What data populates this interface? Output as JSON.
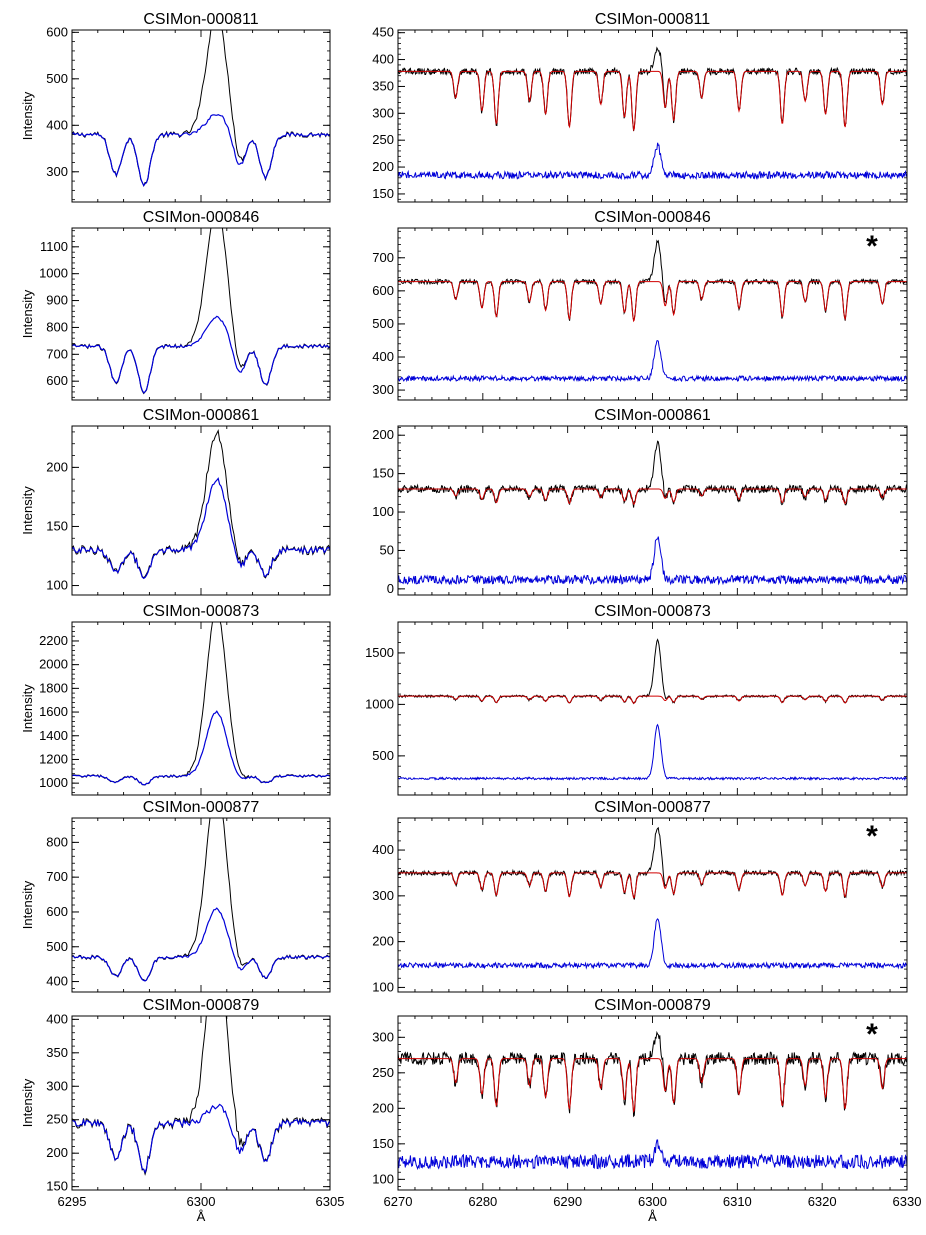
{
  "figure": {
    "xlabel": "Å",
    "ylabel": "Intensity",
    "series_colors": {
      "observed": "#000000",
      "model": "#d00000",
      "residual": "#0000d8"
    }
  },
  "chart_data": [
    {
      "type": "line",
      "title": "CSIMon-000811",
      "panel": "zoom",
      "xlim": [
        6295,
        6305
      ],
      "ylim": [
        235,
        605
      ],
      "yticks": [
        300,
        400,
        500,
        600
      ],
      "xticks": [
        6295,
        6300,
        6305
      ],
      "base": 380,
      "model_base": null,
      "res_base": null,
      "peak_amp": 260,
      "model_amp": 45,
      "feature_depth": 110,
      "res_peak": null,
      "noise": 6,
      "star": false
    },
    {
      "type": "line",
      "title": "CSIMon-000811",
      "panel": "wide",
      "xlim": [
        6270,
        6330
      ],
      "ylim": [
        135,
        455
      ],
      "yticks": [
        150,
        200,
        250,
        300,
        350,
        400,
        450
      ],
      "xticks": [
        6270,
        6280,
        6290,
        6300,
        6310,
        6320,
        6330
      ],
      "base": 380,
      "model_base": 378,
      "res_base": 185,
      "peak_amp": 45,
      "model_amp": 0,
      "feature_depth": 110,
      "res_peak": 55,
      "noise": 6,
      "star": false
    },
    {
      "type": "line",
      "title": "CSIMon-000846",
      "panel": "zoom",
      "xlim": [
        6295,
        6305
      ],
      "ylim": [
        530,
        1170
      ],
      "yticks": [
        600,
        700,
        800,
        900,
        1000,
        1100
      ],
      "xticks": [
        6295,
        6300,
        6305
      ],
      "base": 730,
      "model_base": null,
      "res_base": null,
      "peak_amp": 520,
      "model_amp": 110,
      "feature_depth": 170,
      "res_peak": null,
      "noise": 8,
      "star": false
    },
    {
      "type": "line",
      "title": "CSIMon-000846",
      "panel": "wide",
      "xlim": [
        6270,
        6330
      ],
      "ylim": [
        270,
        790
      ],
      "yticks": [
        300,
        400,
        500,
        600,
        700
      ],
      "xticks": [
        6270,
        6280,
        6290,
        6300,
        6310,
        6320,
        6330
      ],
      "base": 630,
      "model_base": 628,
      "res_base": 335,
      "peak_amp": 120,
      "model_amp": 0,
      "feature_depth": 120,
      "res_peak": 115,
      "noise": 7,
      "star": true
    },
    {
      "type": "line",
      "title": "CSIMon-000861",
      "panel": "zoom",
      "xlim": [
        6295,
        6305
      ],
      "ylim": [
        92,
        235
      ],
      "yticks": [
        100,
        150,
        200
      ],
      "xticks": [
        6295,
        6300,
        6305
      ],
      "base": 130,
      "model_base": null,
      "res_base": null,
      "peak_amp": 100,
      "model_amp": 60,
      "feature_depth": 25,
      "res_peak": null,
      "noise": 4,
      "star": false
    },
    {
      "type": "line",
      "title": "CSIMon-000861",
      "panel": "wide",
      "xlim": [
        6270,
        6330
      ],
      "ylim": [
        -8,
        212
      ],
      "yticks": [
        0,
        50,
        100,
        150,
        200
      ],
      "xticks": [
        6270,
        6280,
        6290,
        6300,
        6310,
        6320,
        6330
      ],
      "base": 130,
      "model_base": 130,
      "res_base": 12,
      "peak_amp": 60,
      "model_amp": 0,
      "feature_depth": 20,
      "res_peak": 58,
      "noise": 5,
      "star": false
    },
    {
      "type": "line",
      "title": "CSIMon-000873",
      "panel": "zoom",
      "xlim": [
        6295,
        6305
      ],
      "ylim": [
        900,
        2360
      ],
      "yticks": [
        1000,
        1200,
        1400,
        1600,
        1800,
        2000,
        2200
      ],
      "xticks": [
        6295,
        6300,
        6305
      ],
      "base": 1060,
      "model_base": null,
      "res_base": null,
      "peak_amp": 1400,
      "model_amp": 540,
      "feature_depth": 70,
      "res_peak": null,
      "noise": 12,
      "star": false
    },
    {
      "type": "line",
      "title": "CSIMon-000873",
      "panel": "wide",
      "xlim": [
        6270,
        6330
      ],
      "ylim": [
        120,
        1800
      ],
      "yticks": [
        500,
        1000,
        1500
      ],
      "xticks": [
        6270,
        6280,
        6290,
        6300,
        6310,
        6320,
        6330
      ],
      "base": 1080,
      "model_base": 1080,
      "res_base": 280,
      "peak_amp": 540,
      "model_amp": 0,
      "feature_depth": 70,
      "res_peak": 520,
      "noise": 10,
      "star": false
    },
    {
      "type": "line",
      "title": "CSIMon-000877",
      "panel": "zoom",
      "xlim": [
        6295,
        6305
      ],
      "ylim": [
        370,
        870
      ],
      "yticks": [
        400,
        500,
        600,
        700,
        800
      ],
      "xticks": [
        6295,
        6300,
        6305
      ],
      "base": 470,
      "model_base": null,
      "res_base": null,
      "peak_amp": 500,
      "model_amp": 140,
      "feature_depth": 70,
      "res_peak": null,
      "noise": 6,
      "star": false
    },
    {
      "type": "line",
      "title": "CSIMon-000877",
      "panel": "wide",
      "xlim": [
        6270,
        6330
      ],
      "ylim": [
        90,
        470
      ],
      "yticks": [
        100,
        200,
        300,
        400
      ],
      "xticks": [
        6270,
        6280,
        6290,
        6300,
        6310,
        6320,
        6330
      ],
      "base": 350,
      "model_base": 350,
      "res_base": 148,
      "peak_amp": 100,
      "model_amp": 0,
      "feature_depth": 55,
      "res_peak": 105,
      "noise": 5,
      "star": true
    },
    {
      "type": "line",
      "title": "CSIMon-000879",
      "panel": "zoom",
      "xlim": [
        6295,
        6305
      ],
      "ylim": [
        145,
        405
      ],
      "yticks": [
        150,
        200,
        250,
        300,
        350,
        400
      ],
      "xticks": [
        6295,
        6300,
        6305
      ],
      "base": 245,
      "model_base": null,
      "res_base": null,
      "peak_amp": 260,
      "model_amp": 25,
      "feature_depth": 70,
      "res_peak": null,
      "noise": 8,
      "star": false
    },
    {
      "type": "line",
      "title": "CSIMon-000879",
      "panel": "wide",
      "xlim": [
        6270,
        6330
      ],
      "ylim": [
        85,
        330
      ],
      "yticks": [
        100,
        150,
        200,
        250,
        300
      ],
      "xticks": [
        6270,
        6280,
        6290,
        6300,
        6310,
        6320,
        6330
      ],
      "base": 272,
      "model_base": 270,
      "res_base": 125,
      "peak_amp": 35,
      "model_amp": 0,
      "feature_depth": 75,
      "res_peak": 25,
      "noise": 9,
      "star": true
    }
  ],
  "lines": [
    6276.8,
    6279.9,
    6281.6,
    6285.5,
    6287.4,
    6290.2,
    6293.9,
    6296.7,
    6297.8,
    6301.5,
    6302.5,
    6305.8,
    6310.2,
    6315.3,
    6318.0,
    6320.4,
    6322.7,
    6327.1
  ]
}
